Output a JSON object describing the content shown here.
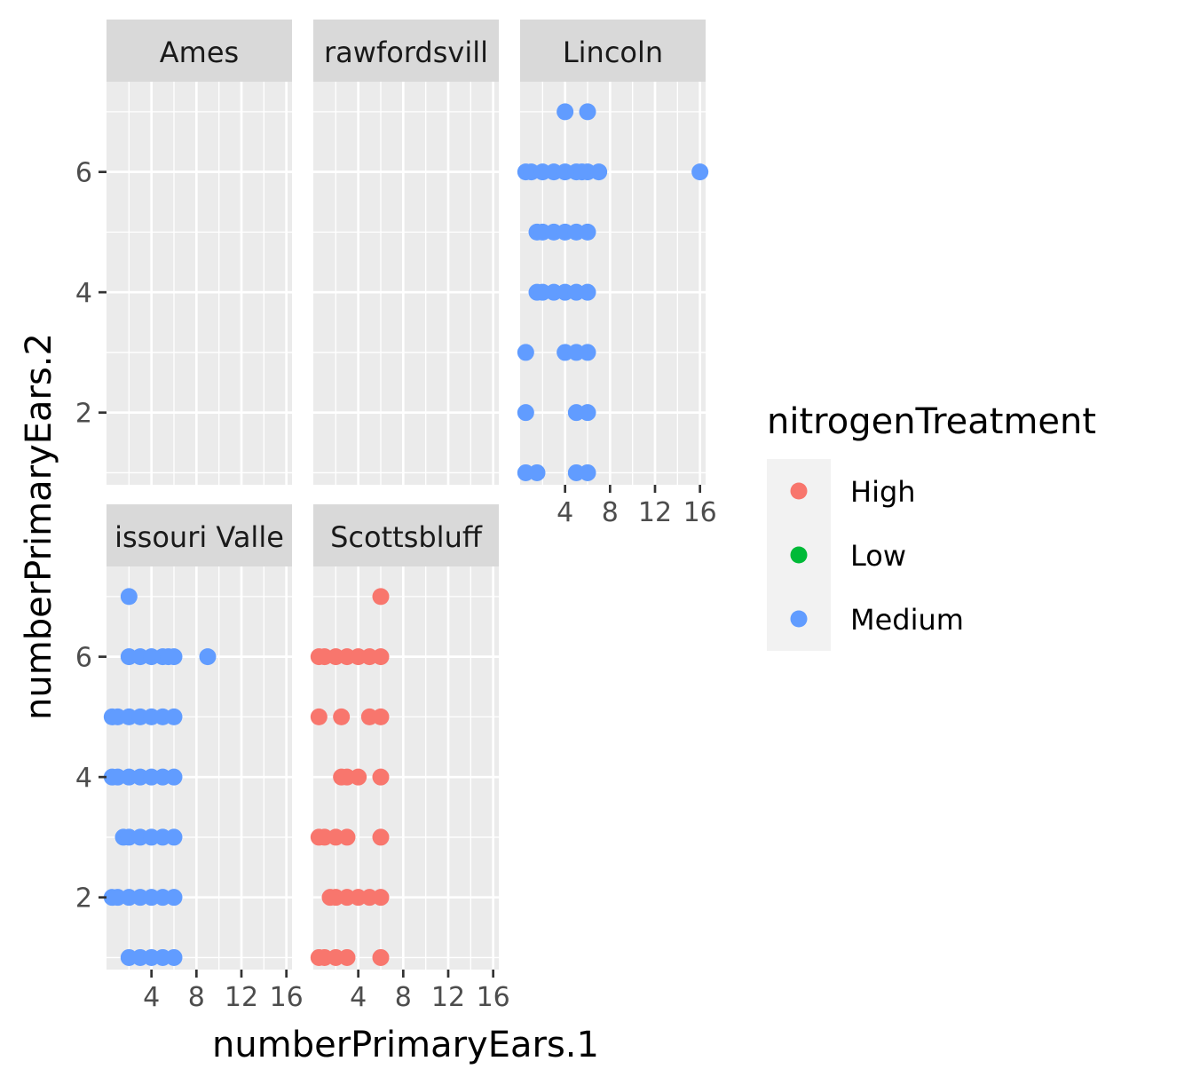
{
  "chart_data": {
    "type": "scatter",
    "xlabel": "numberPrimaryEars.1",
    "ylabel": "numberPrimaryEars.2",
    "xlim": [
      0,
      16.5
    ],
    "ylim": [
      0.8,
      7.5
    ],
    "x_ticks": [
      4,
      8,
      12,
      16
    ],
    "x_tick_labels": [
      "4",
      "8",
      "12",
      "16"
    ],
    "y_ticks": [
      2,
      4,
      6
    ],
    "y_tick_labels": [
      "2",
      "4",
      "6"
    ],
    "grid": true,
    "legend": {
      "title": "nitrogenTreatment",
      "placement": "right",
      "items": [
        {
          "label": "High",
          "color": "#F8766D"
        },
        {
          "label": "Low",
          "color": "#00BA38"
        },
        {
          "label": "Medium",
          "color": "#619CFF"
        }
      ]
    },
    "panels": [
      {
        "label": "Ames",
        "strip_text": "Ames",
        "points": []
      },
      {
        "label": "Crawfordsville",
        "strip_text": "rawfordsvill",
        "points": []
      },
      {
        "label": "Lincoln",
        "strip_text": "Lincoln",
        "color": "Medium",
        "points": [
          [
            4,
            7
          ],
          [
            6,
            7
          ],
          [
            0.5,
            6
          ],
          [
            1,
            6
          ],
          [
            2,
            6
          ],
          [
            3,
            6
          ],
          [
            4,
            6
          ],
          [
            5,
            6
          ],
          [
            5.5,
            6
          ],
          [
            6,
            6
          ],
          [
            7,
            6
          ],
          [
            16,
            6
          ],
          [
            1.5,
            5
          ],
          [
            2,
            5
          ],
          [
            3,
            5
          ],
          [
            4,
            5
          ],
          [
            5,
            5
          ],
          [
            6,
            5
          ],
          [
            1.5,
            4
          ],
          [
            2,
            4
          ],
          [
            3,
            4
          ],
          [
            4,
            4
          ],
          [
            5,
            4
          ],
          [
            6,
            4
          ],
          [
            0.5,
            3
          ],
          [
            4,
            3
          ],
          [
            5,
            3
          ],
          [
            6,
            3
          ],
          [
            0.5,
            2
          ],
          [
            5,
            2
          ],
          [
            6,
            2
          ],
          [
            0.5,
            1
          ],
          [
            1.5,
            1
          ],
          [
            5,
            1
          ],
          [
            6,
            1
          ]
        ]
      },
      {
        "label": "Missouri Valley",
        "strip_text": "issouri Valle",
        "color": "Medium",
        "points": [
          [
            2,
            7
          ],
          [
            2,
            6
          ],
          [
            3,
            6
          ],
          [
            4,
            6
          ],
          [
            5,
            6
          ],
          [
            5.5,
            6
          ],
          [
            6,
            6
          ],
          [
            9,
            6
          ],
          [
            0.5,
            5
          ],
          [
            1,
            5
          ],
          [
            2,
            5
          ],
          [
            3,
            5
          ],
          [
            4,
            5
          ],
          [
            5,
            5
          ],
          [
            6,
            5
          ],
          [
            0.5,
            4
          ],
          [
            1,
            4
          ],
          [
            2,
            4
          ],
          [
            3,
            4
          ],
          [
            4,
            4
          ],
          [
            5,
            4
          ],
          [
            6,
            4
          ],
          [
            1.5,
            3
          ],
          [
            2,
            3
          ],
          [
            3,
            3
          ],
          [
            4,
            3
          ],
          [
            5,
            3
          ],
          [
            6,
            3
          ],
          [
            0.5,
            2
          ],
          [
            1,
            2
          ],
          [
            2,
            2
          ],
          [
            3,
            2
          ],
          [
            4,
            2
          ],
          [
            5,
            2
          ],
          [
            6,
            2
          ],
          [
            2,
            1
          ],
          [
            3,
            1
          ],
          [
            4,
            1
          ],
          [
            5,
            1
          ],
          [
            6,
            1
          ]
        ]
      },
      {
        "label": "Scottsbluff",
        "strip_text": "Scottsbluff",
        "color": "High",
        "points": [
          [
            6,
            7
          ],
          [
            0.5,
            6
          ],
          [
            1,
            6
          ],
          [
            2,
            6
          ],
          [
            3,
            6
          ],
          [
            4,
            6
          ],
          [
            5,
            6
          ],
          [
            6,
            6
          ],
          [
            0.5,
            5
          ],
          [
            2.5,
            5
          ],
          [
            5,
            5
          ],
          [
            6,
            5
          ],
          [
            2.5,
            4
          ],
          [
            3,
            4
          ],
          [
            4,
            4
          ],
          [
            6,
            4
          ],
          [
            0.5,
            3
          ],
          [
            1,
            3
          ],
          [
            2,
            3
          ],
          [
            3,
            3
          ],
          [
            6,
            3
          ],
          [
            1.5,
            2
          ],
          [
            2,
            2
          ],
          [
            3,
            2
          ],
          [
            4,
            2
          ],
          [
            5,
            2
          ],
          [
            6,
            2
          ],
          [
            0.5,
            1
          ],
          [
            1,
            1
          ],
          [
            2,
            1
          ],
          [
            3,
            1
          ],
          [
            6,
            1
          ]
        ]
      }
    ]
  }
}
